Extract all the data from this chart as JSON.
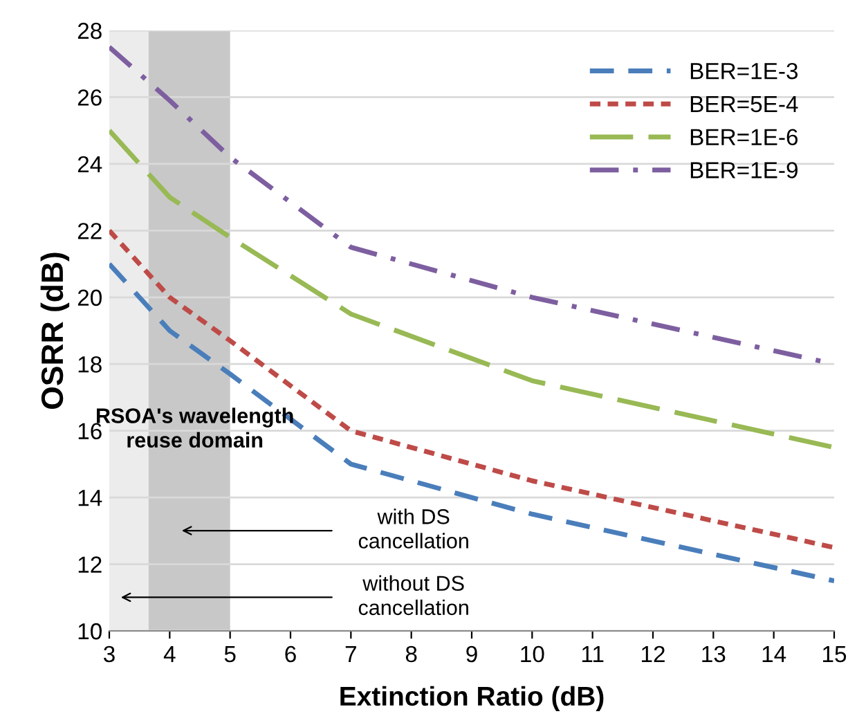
{
  "chart_data": {
    "type": "line",
    "xlabel": "Extinction Ratio (dB)",
    "ylabel": "OSRR (dB)",
    "x": [
      3,
      4,
      5,
      7,
      10,
      15
    ],
    "series": [
      {
        "name": "BER=1E-3",
        "color": "#4a7ebb",
        "line_style": "dashed",
        "values": [
          21,
          19,
          17.7,
          15,
          13.5,
          11.5
        ]
      },
      {
        "name": "BER=5E-4",
        "color": "#be4b48",
        "line_style": "dotted",
        "values": [
          22,
          20,
          18.7,
          16,
          14.5,
          12.5
        ]
      },
      {
        "name": "BER=1E-6",
        "color": "#98b954",
        "line_style": "longdash",
        "values": [
          25,
          23,
          21.8,
          19.5,
          17.5,
          15.5
        ]
      },
      {
        "name": "BER=1E-9",
        "color": "#7d5fa0",
        "line_style": "dashdot",
        "values": [
          27.5,
          25.9,
          24.2,
          21.5,
          20,
          18
        ]
      }
    ],
    "xlim": [
      3,
      15
    ],
    "xticks": [
      3,
      4,
      5,
      6,
      7,
      8,
      9,
      10,
      11,
      12,
      13,
      14,
      15
    ],
    "ylim": [
      10,
      28
    ],
    "yticks": [
      10,
      12,
      14,
      16,
      18,
      20,
      22,
      24,
      26,
      28
    ],
    "bands": [
      {
        "axis": "x",
        "from": 3,
        "to": 3.65,
        "color": "#ececec"
      },
      {
        "axis": "x",
        "from": 3.65,
        "to": 5,
        "color": "#c8c8c8"
      }
    ],
    "annotations": [
      "RSOA's wavelength reuse domain",
      "with DS cancellation",
      "without DS cancellation"
    ],
    "grid": "y",
    "legend": "top right",
    "marker": "none"
  }
}
